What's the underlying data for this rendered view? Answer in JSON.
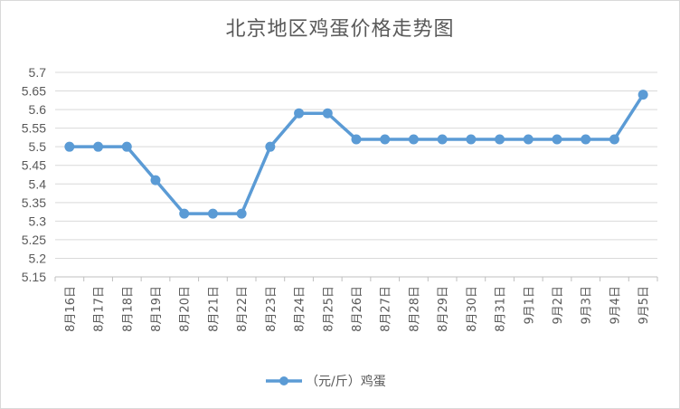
{
  "chart_data": {
    "type": "line",
    "title": "北京地区鸡蛋价格走势图",
    "xlabel": "",
    "ylabel": "",
    "ylim": [
      5.15,
      5.7
    ],
    "yticks": [
      "5.15",
      "5.2",
      "5.25",
      "5.3",
      "5.35",
      "5.4",
      "5.45",
      "5.5",
      "5.55",
      "5.6",
      "5.65",
      "5.7"
    ],
    "grid": true,
    "legend_position": "bottom",
    "categories": [
      "8月16日",
      "8月17日",
      "8月18日",
      "8月19日",
      "8月20日",
      "8月21日",
      "8月22日",
      "8月23日",
      "8月24日",
      "8月25日",
      "8月26日",
      "8月27日",
      "8月28日",
      "8月29日",
      "8月30日",
      "8月31日",
      "9月1日",
      "9月2日",
      "9月3日",
      "9月4日",
      "9月5日"
    ],
    "series": [
      {
        "name": "（元/斤）鸡蛋",
        "color": "#5b9bd5",
        "values": [
          5.5,
          5.5,
          5.5,
          5.41,
          5.32,
          5.32,
          5.32,
          5.5,
          5.59,
          5.59,
          5.52,
          5.52,
          5.52,
          5.52,
          5.52,
          5.52,
          5.52,
          5.52,
          5.52,
          5.52,
          5.64
        ]
      }
    ]
  }
}
